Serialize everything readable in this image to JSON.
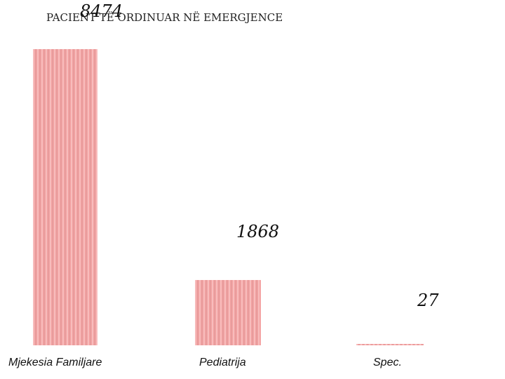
{
  "chart_data": {
    "type": "bar",
    "title": "PACIENT TË ORDINUAR NË EMERGJENCE",
    "categories": [
      "Mjekesia Familjare",
      "Pediatrija",
      "Spec."
    ],
    "values": [
      8474,
      1868,
      27
    ],
    "data_labels": [
      "8474",
      "1868",
      "27"
    ],
    "ylim": [
      0,
      8474
    ],
    "grid": false,
    "colors": {
      "bar_light": "#f4a3a3",
      "bar_dark": "#c98e8e"
    }
  }
}
